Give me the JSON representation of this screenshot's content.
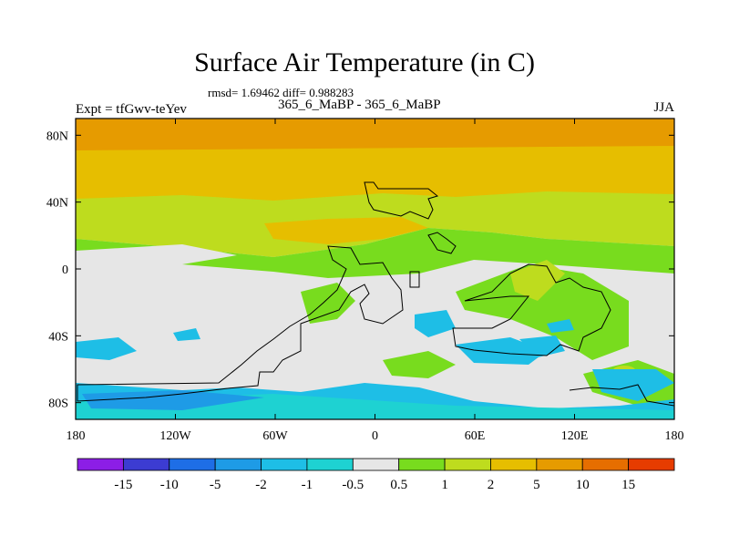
{
  "chart_data": {
    "type": "heatmap",
    "title": "Surface Air Temperature (in C)",
    "stats_line": "rmsd= 1.69462 diff= 0.988283",
    "subtitle": "365_6_MaBP - 365_6_MaBP",
    "left_label": "Expt = tfGwv-teYev",
    "right_label": "JJA",
    "x_ticks": [
      "180",
      "120W",
      "60W",
      "0",
      "60E",
      "120E",
      "180"
    ],
    "y_ticks": [
      "80N",
      "40N",
      "0",
      "40S",
      "80S"
    ],
    "xlim": [
      -180,
      180
    ],
    "ylim": [
      -90,
      90
    ],
    "colorbar": {
      "labels": [
        "-15",
        "-10",
        "-5",
        "-2",
        "-1",
        "-0.5",
        "0.5",
        "1",
        "2",
        "5",
        "10",
        "15"
      ],
      "colors": [
        "#8c1ee6",
        "#3c3cd2",
        "#1e6ee6",
        "#1e9be6",
        "#1ebee6",
        "#1ed2d2",
        "#e6e6e6",
        "#78dc1e",
        "#bedc1e",
        "#e6be00",
        "#e69b00",
        "#e66e00",
        "#e63c00"
      ]
    },
    "bands": [
      {
        "lat_range": [
          75,
          90
        ],
        "value_class": "10 to 15",
        "color": "#e6a000"
      },
      {
        "lat_range": [
          50,
          75
        ],
        "value_class": "5 to 10",
        "color": "#e6be00"
      },
      {
        "lat_range": [
          25,
          50
        ],
        "value_class": "2 to 5",
        "color": "#bedc1e"
      },
      {
        "lat_range": [
          5,
          25
        ],
        "value_class": "1 to 2",
        "color": "#bedc1e"
      },
      {
        "lat_range": [
          -55,
          5
        ],
        "value_class": "-0.5 to 0.5",
        "color": "#e6e6e6"
      },
      {
        "lat_range": [
          -90,
          -70
        ],
        "value_class": "-2 to -1",
        "color": "#1ebee6"
      }
    ]
  }
}
